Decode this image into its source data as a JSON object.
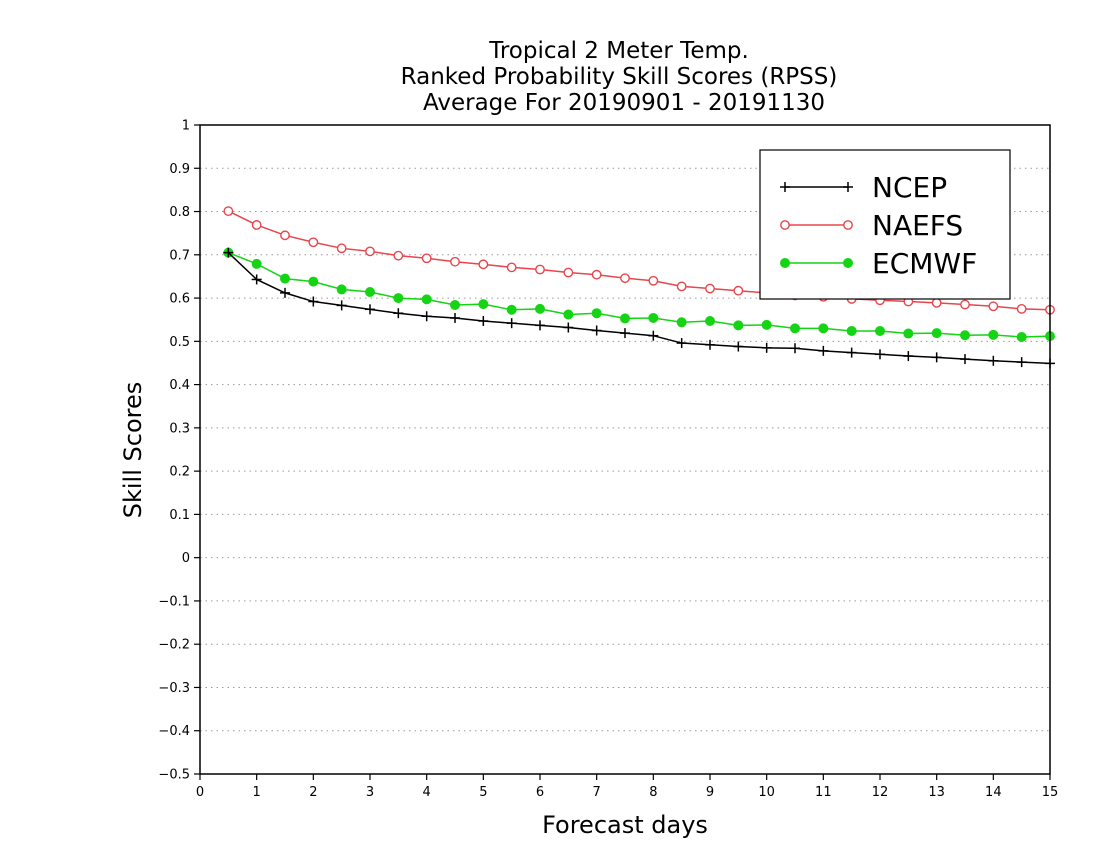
{
  "chart_data": {
    "type": "line",
    "title": [
      "Tropical 2 Meter Temp.",
      "Ranked Probability Skill Scores (RPSS)",
      "Average For 20190901 - 20191130"
    ],
    "xlabel": "Forecast days",
    "ylabel": "Skill Scores",
    "xlim": [
      0,
      15
    ],
    "ylim": [
      -0.5,
      1
    ],
    "x_ticks": [
      0,
      1,
      2,
      3,
      4,
      5,
      6,
      7,
      8,
      9,
      10,
      11,
      12,
      13,
      14,
      15
    ],
    "y_ticks": [
      -0.5,
      -0.4,
      -0.3,
      -0.2,
      -0.1,
      0,
      0.1,
      0.2,
      0.3,
      0.4,
      0.5,
      0.6,
      0.7,
      0.8,
      0.9,
      1
    ],
    "x_tick_labels": [
      "0",
      "1",
      "2",
      "3",
      "4",
      "5",
      "6",
      "7",
      "8",
      "9",
      "10",
      "11",
      "12",
      "13",
      "14",
      "15"
    ],
    "y_tick_labels": [
      "−0.5",
      "−0.4",
      "−0.3",
      "−0.2",
      "−0.1",
      "0",
      "0.1",
      "0.2",
      "0.3",
      "0.4",
      "0.5",
      "0.6",
      "0.7",
      "0.8",
      "0.9",
      "1"
    ],
    "grid": "horizontal dotted",
    "legend_position": "top-right",
    "x": [
      0.5,
      1,
      1.5,
      2,
      2.5,
      3,
      3.5,
      4,
      4.5,
      5,
      5.5,
      6,
      6.5,
      7,
      7.5,
      8,
      8.5,
      9,
      9.5,
      10,
      10.5,
      11,
      11.5,
      12,
      12.5,
      13,
      13.5,
      14,
      14.5,
      15
    ],
    "series": [
      {
        "name": "NCEP",
        "color": "#000000",
        "marker": "plus",
        "values": [
          0.705,
          0.643,
          0.612,
          0.592,
          0.583,
          0.574,
          0.565,
          0.558,
          0.554,
          0.547,
          0.542,
          0.537,
          0.532,
          0.525,
          0.519,
          0.513,
          0.496,
          0.492,
          0.488,
          0.485,
          0.484,
          0.478,
          0.474,
          0.47,
          0.466,
          0.463,
          0.459,
          0.455,
          0.452,
          0.449
        ]
      },
      {
        "name": "NAEFS",
        "color": "#e8464c",
        "marker": "open-circle",
        "values": [
          0.801,
          0.769,
          0.745,
          0.729,
          0.715,
          0.708,
          0.698,
          0.692,
          0.684,
          0.678,
          0.671,
          0.666,
          0.659,
          0.654,
          0.646,
          0.64,
          0.627,
          0.622,
          0.617,
          0.612,
          0.606,
          0.603,
          0.598,
          0.595,
          0.592,
          0.589,
          0.585,
          0.581,
          0.575,
          0.573
        ]
      },
      {
        "name": "ECMWF",
        "color": "#14d414",
        "marker": "filled-circle",
        "values": [
          0.705,
          0.679,
          0.645,
          0.638,
          0.62,
          0.614,
          0.6,
          0.597,
          0.584,
          0.586,
          0.573,
          0.575,
          0.562,
          0.565,
          0.553,
          0.554,
          0.544,
          0.547,
          0.537,
          0.538,
          0.53,
          0.53,
          0.524,
          0.524,
          0.518,
          0.519,
          0.514,
          0.515,
          0.51,
          0.512
        ]
      }
    ]
  }
}
